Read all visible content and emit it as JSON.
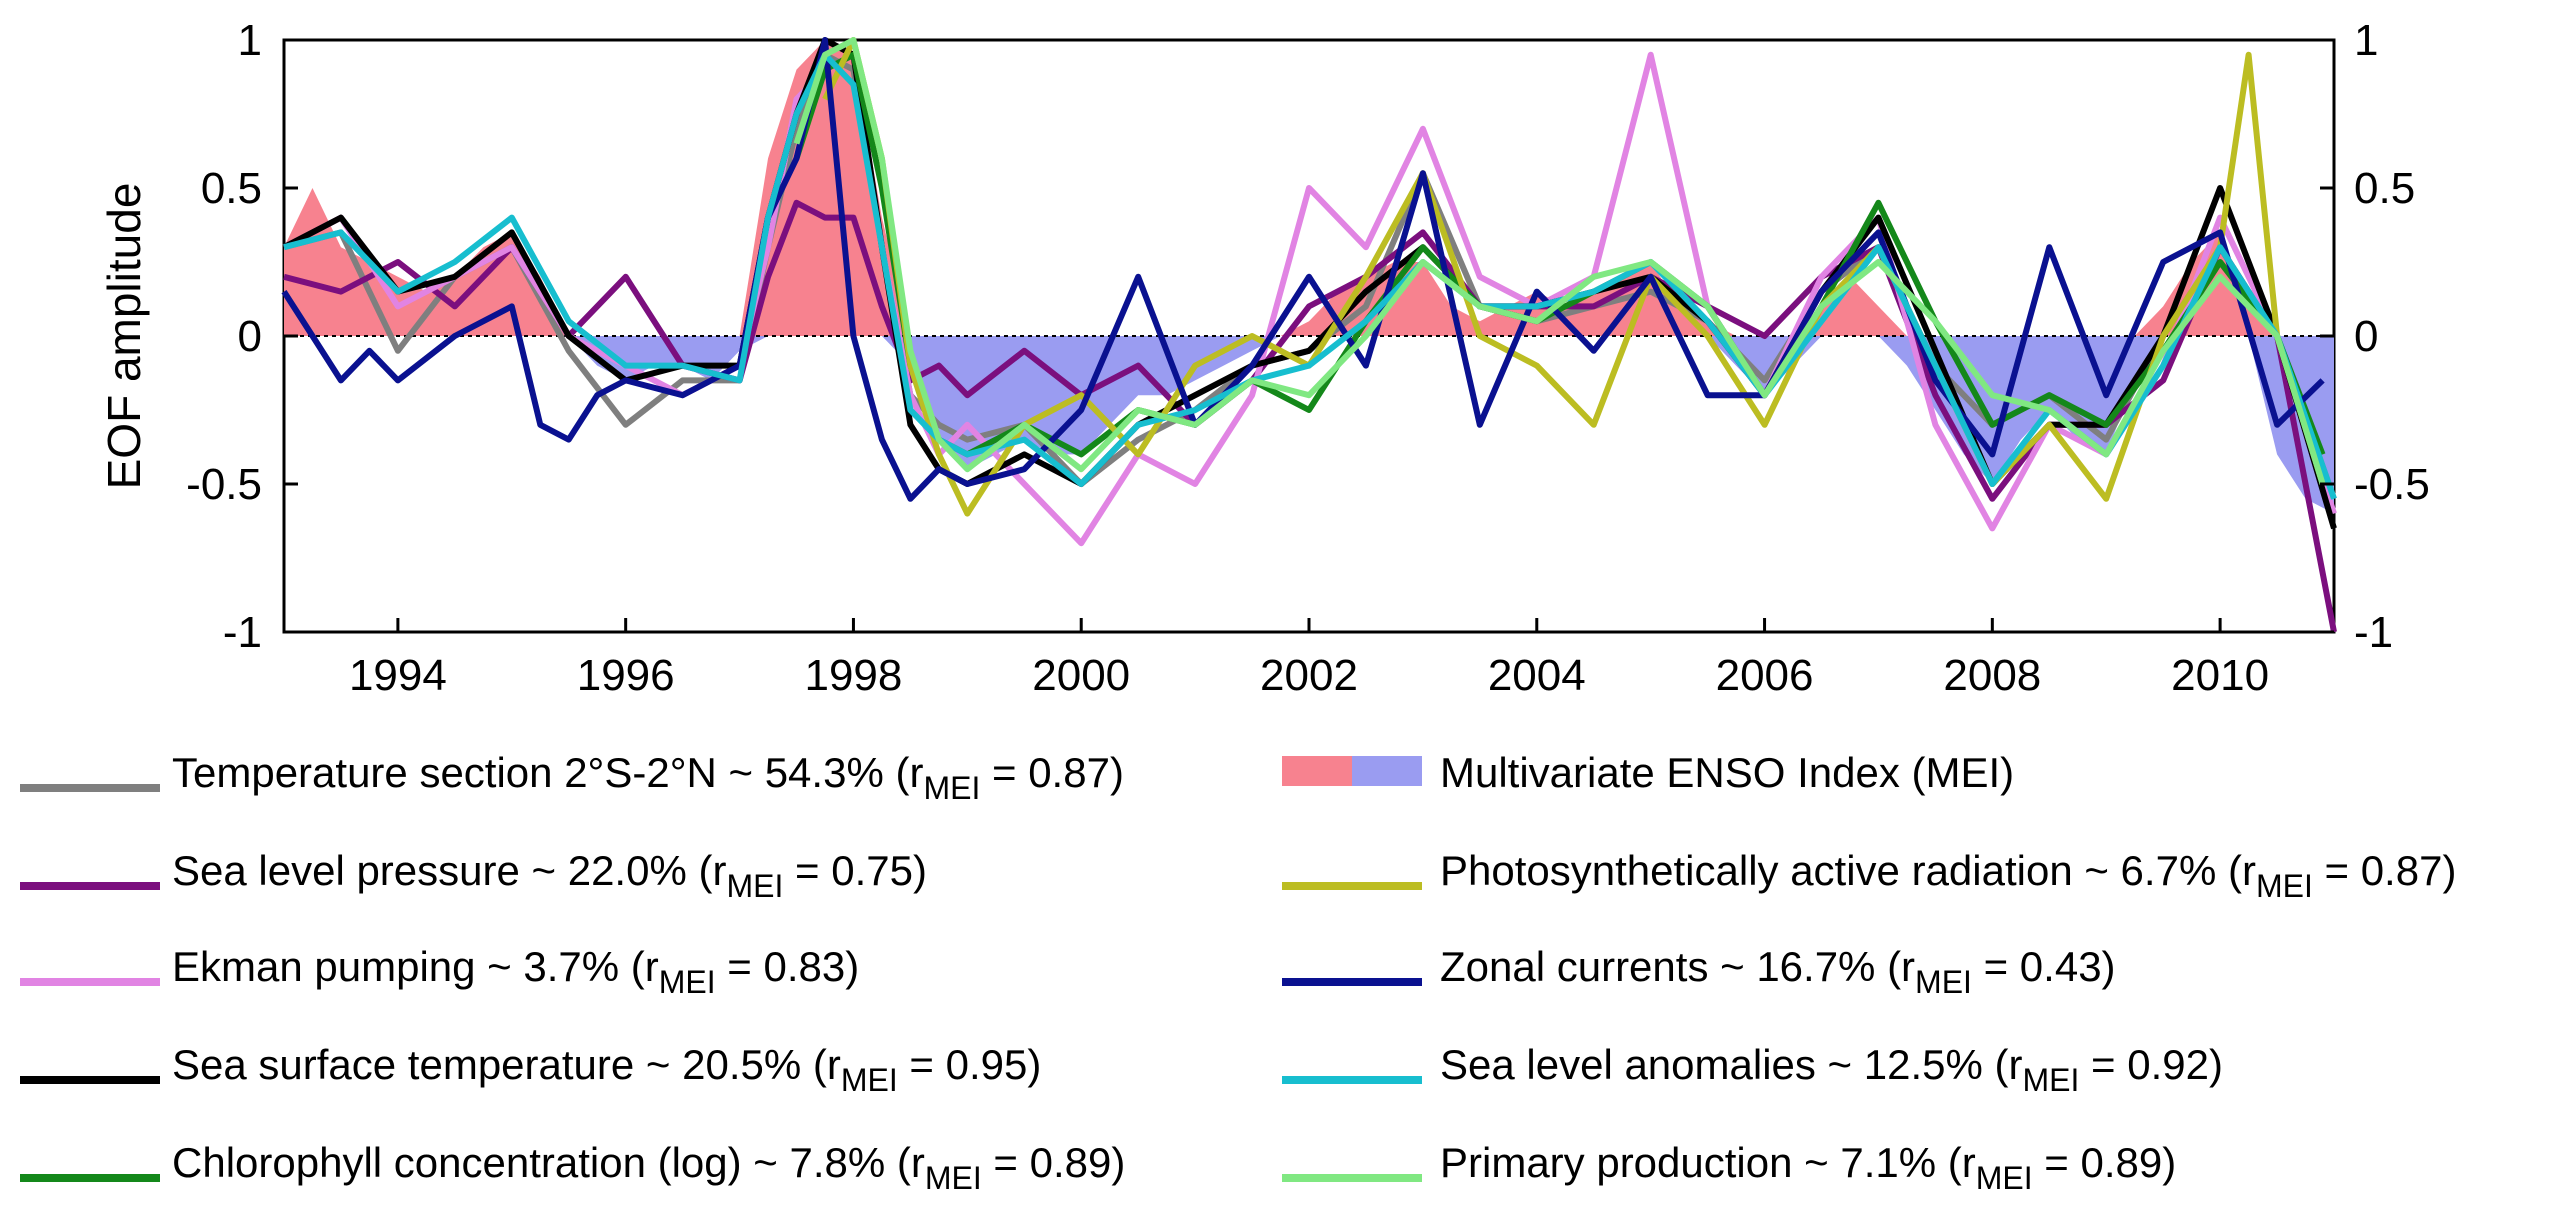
{
  "chart_data": {
    "type": "line",
    "ylabel": "EOF amplitude",
    "xlabel": "",
    "title": "",
    "xlim": [
      1993.0,
      2011.0
    ],
    "ylim": [
      -1,
      1
    ],
    "x_ticks": [
      1994,
      1996,
      1998,
      2000,
      2002,
      2004,
      2006,
      2008,
      2010
    ],
    "y_ticks": [
      -1,
      -0.5,
      0,
      0.5,
      1
    ],
    "y_tick_labels": [
      "-1",
      "-0.5",
      "0",
      "0.5",
      "1"
    ],
    "zero_line": "dotted",
    "grid": false,
    "legend_position": "bottom",
    "mei": {
      "name": "Multivariate ENSO Index (MEI)",
      "positive_color": "#f7828f",
      "negative_color": "#9a9cf1",
      "x": [
        1993.0,
        1993.25,
        1993.5,
        1993.75,
        1994.0,
        1994.25,
        1994.5,
        1994.75,
        1995.0,
        1995.25,
        1995.5,
        1995.75,
        1996.0,
        1996.25,
        1996.5,
        1996.75,
        1997.0,
        1997.25,
        1997.5,
        1997.75,
        1998.0,
        1998.25,
        1998.5,
        1998.75,
        1999.0,
        1999.25,
        1999.5,
        1999.75,
        2000.0,
        2000.25,
        2000.5,
        2000.75,
        2001.0,
        2001.25,
        2001.5,
        2001.75,
        2002.0,
        2002.25,
        2002.5,
        2002.75,
        2003.0,
        2003.25,
        2003.5,
        2003.75,
        2004.0,
        2004.25,
        2004.5,
        2004.75,
        2005.0,
        2005.25,
        2005.5,
        2005.75,
        2006.0,
        2006.25,
        2006.5,
        2006.75,
        2007.0,
        2007.25,
        2007.5,
        2007.75,
        2008.0,
        2008.25,
        2008.5,
        2008.75,
        2009.0,
        2009.25,
        2009.5,
        2009.75,
        2010.0,
        2010.25,
        2010.5,
        2010.75,
        2011.0
      ],
      "values": [
        0.3,
        0.5,
        0.3,
        0.25,
        0.2,
        0.15,
        0.2,
        0.3,
        0.35,
        0.2,
        0.0,
        -0.1,
        -0.15,
        -0.1,
        -0.1,
        -0.15,
        -0.05,
        0.6,
        0.9,
        1.0,
        0.95,
        0.4,
        -0.1,
        -0.35,
        -0.45,
        -0.4,
        -0.35,
        -0.4,
        -0.4,
        -0.3,
        -0.2,
        -0.2,
        -0.15,
        -0.1,
        -0.05,
        0.0,
        0.05,
        0.15,
        0.2,
        0.25,
        0.25,
        0.1,
        0.05,
        0.1,
        0.15,
        0.1,
        0.15,
        0.2,
        0.25,
        0.1,
        0.05,
        -0.1,
        -0.2,
        -0.1,
        0.1,
        0.2,
        0.1,
        -0.1,
        -0.25,
        -0.4,
        -0.5,
        -0.35,
        -0.25,
        -0.35,
        -0.4,
        -0.15,
        0.1,
        0.25,
        0.35,
        0.1,
        -0.4,
        -0.55,
        -0.6
      ]
    },
    "series": [
      {
        "name": "Temperature section 2°S-2°N ~ 54.3%",
        "r_mei": "0.87",
        "color": "#7f7f7f",
        "x": [
          1993.0,
          1993.5,
          1994.0,
          1994.5,
          1995.0,
          1995.5,
          1996.0,
          1996.5,
          1997.0,
          1997.25,
          1997.5,
          1997.75,
          1998.0,
          1998.25,
          1998.5,
          1998.75,
          1999.0,
          1999.5,
          2000.0,
          2000.5,
          2001.0,
          2001.5,
          2002.0,
          2002.5,
          2003.0,
          2003.5,
          2004.0,
          2004.5,
          2005.0,
          2005.5,
          2006.0,
          2006.5,
          2007.0,
          2007.5,
          2008.0,
          2008.5,
          2009.0,
          2009.5,
          2010.0,
          2010.5,
          2011.0
        ],
        "values": [
          0.3,
          0.35,
          -0.05,
          0.2,
          0.3,
          -0.05,
          -0.3,
          -0.15,
          -0.15,
          0.3,
          0.7,
          0.95,
          0.9,
          0.3,
          -0.2,
          -0.3,
          -0.35,
          -0.3,
          -0.5,
          -0.35,
          -0.25,
          -0.1,
          -0.05,
          0.1,
          0.55,
          0.1,
          0.05,
          0.1,
          0.15,
          0.05,
          -0.15,
          0.15,
          0.3,
          -0.1,
          -0.3,
          -0.2,
          -0.35,
          0.0,
          0.3,
          0.0,
          -0.55
        ]
      },
      {
        "name": "Sea level pressure ~ 22.0%",
        "r_mei": "0.75",
        "color": "#7b0f7e",
        "x": [
          1993.0,
          1993.5,
          1994.0,
          1994.5,
          1995.0,
          1995.5,
          1996.0,
          1996.5,
          1997.0,
          1997.25,
          1997.5,
          1997.75,
          1998.0,
          1998.25,
          1998.5,
          1998.75,
          1999.0,
          1999.5,
          2000.0,
          2000.5,
          2001.0,
          2001.5,
          2002.0,
          2002.5,
          2003.0,
          2003.5,
          2004.0,
          2004.5,
          2005.0,
          2005.5,
          2006.0,
          2006.5,
          2007.0,
          2007.5,
          2008.0,
          2008.5,
          2009.0,
          2009.5,
          2010.0,
          2010.5,
          2011.0
        ],
        "values": [
          0.2,
          0.15,
          0.25,
          0.1,
          0.3,
          0.0,
          0.2,
          -0.1,
          -0.15,
          0.2,
          0.45,
          0.4,
          0.4,
          0.1,
          -0.15,
          -0.1,
          -0.2,
          -0.05,
          -0.2,
          -0.1,
          -0.3,
          -0.15,
          0.1,
          0.2,
          0.35,
          0.1,
          0.1,
          0.1,
          0.2,
          0.1,
          0.0,
          0.2,
          0.3,
          -0.2,
          -0.55,
          -0.3,
          -0.3,
          -0.15,
          0.3,
          0.0,
          -1.0
        ]
      },
      {
        "name": "Ekman pumping ~ 3.7%",
        "r_mei": "0.83",
        "color": "#e184e3",
        "x": [
          1993.0,
          1993.5,
          1994.0,
          1994.5,
          1995.0,
          1995.5,
          1996.0,
          1996.5,
          1997.0,
          1997.25,
          1997.5,
          1997.75,
          1998.0,
          1998.25,
          1998.5,
          1998.75,
          1999.0,
          1999.5,
          2000.0,
          2000.5,
          2001.0,
          2001.5,
          2002.0,
          2002.5,
          2003.0,
          2003.5,
          2004.0,
          2004.5,
          2005.0,
          2005.5,
          2006.0,
          2006.5,
          2007.0,
          2007.5,
          2008.0,
          2008.5,
          2009.0,
          2009.5,
          2010.0,
          2010.5,
          2011.0
        ],
        "values": [
          0.3,
          0.4,
          0.1,
          0.2,
          0.3,
          0.0,
          -0.1,
          -0.2,
          -0.1,
          0.3,
          0.8,
          0.9,
          0.95,
          0.3,
          -0.2,
          -0.4,
          -0.3,
          -0.5,
          -0.7,
          -0.4,
          -0.5,
          -0.2,
          0.5,
          0.3,
          0.7,
          0.2,
          0.1,
          0.2,
          0.95,
          0.1,
          -0.2,
          0.2,
          0.4,
          -0.3,
          -0.65,
          -0.3,
          -0.4,
          -0.1,
          0.4,
          0.0,
          -0.6
        ]
      },
      {
        "name": "Sea surface temperature ~ 20.5%",
        "r_mei": "0.95",
        "color": "#000000",
        "x": [
          1993.0,
          1993.5,
          1994.0,
          1994.5,
          1995.0,
          1995.5,
          1996.0,
          1996.5,
          1997.0,
          1997.25,
          1997.5,
          1997.75,
          1998.0,
          1998.25,
          1998.5,
          1998.75,
          1999.0,
          1999.5,
          2000.0,
          2000.5,
          2001.0,
          2001.5,
          2002.0,
          2002.5,
          2003.0,
          2003.5,
          2004.0,
          2004.5,
          2005.0,
          2005.5,
          2006.0,
          2006.5,
          2007.0,
          2007.5,
          2008.0,
          2008.5,
          2009.0,
          2009.5,
          2010.0,
          2010.5,
          2011.0
        ],
        "values": [
          0.3,
          0.4,
          0.15,
          0.2,
          0.35,
          0.0,
          -0.15,
          -0.1,
          -0.1,
          0.4,
          0.75,
          1.0,
          0.95,
          0.3,
          -0.3,
          -0.45,
          -0.5,
          -0.4,
          -0.5,
          -0.3,
          -0.2,
          -0.1,
          -0.05,
          0.15,
          0.3,
          0.1,
          0.1,
          0.15,
          0.2,
          0.05,
          -0.2,
          0.15,
          0.4,
          -0.05,
          -0.5,
          -0.3,
          -0.3,
          0.0,
          0.5,
          0.0,
          -0.65
        ]
      },
      {
        "name": "Chlorophyll concentration (log) ~ 7.8%",
        "r_mei": "0.89",
        "color": "#14881a",
        "x": [
          1997.5,
          1997.75,
          1998.0,
          1998.25,
          1998.5,
          1998.75,
          1999.0,
          1999.5,
          2000.0,
          2000.5,
          2001.0,
          2001.5,
          2002.0,
          2002.5,
          2003.0,
          2003.5,
          2004.0,
          2004.5,
          2005.0,
          2005.5,
          2006.0,
          2006.5,
          2007.0,
          2007.5,
          2008.0,
          2008.5,
          2009.0,
          2009.5,
          2010.0,
          2010.5,
          2010.9
        ],
        "values": [
          0.6,
          0.9,
          0.95,
          0.5,
          -0.1,
          -0.35,
          -0.4,
          -0.3,
          -0.4,
          -0.25,
          -0.3,
          -0.15,
          -0.25,
          0.05,
          0.3,
          0.1,
          0.05,
          0.15,
          0.25,
          0.1,
          -0.2,
          0.1,
          0.45,
          0.05,
          -0.3,
          -0.2,
          -0.3,
          -0.05,
          0.25,
          0.0,
          -0.4
        ]
      },
      {
        "name": "Photosynthetically active radiation ~ 6.7%",
        "r_mei": "0.87",
        "color": "#bcbd22",
        "x": [
          1997.75,
          1998.0,
          1998.25,
          1998.5,
          1998.75,
          1999.0,
          1999.5,
          2000.0,
          2000.5,
          2001.0,
          2001.5,
          2002.0,
          2002.5,
          2003.0,
          2003.5,
          2004.0,
          2004.5,
          2005.0,
          2005.5,
          2006.0,
          2006.5,
          2007.0,
          2007.5,
          2008.0,
          2008.5,
          2009.0,
          2009.5,
          2010.0,
          2010.25,
          2010.5,
          2010.9
        ],
        "values": [
          0.8,
          1.0,
          0.6,
          -0.1,
          -0.4,
          -0.6,
          -0.3,
          -0.2,
          -0.4,
          -0.1,
          0.0,
          -0.1,
          0.2,
          0.55,
          0.0,
          -0.1,
          -0.3,
          0.2,
          0.0,
          -0.3,
          0.1,
          0.3,
          -0.1,
          -0.5,
          -0.3,
          -0.55,
          0.0,
          0.3,
          0.95,
          0.0,
          -0.5
        ]
      },
      {
        "name": "Zonal currents ~ 16.7%",
        "r_mei": "0.43",
        "color": "#0a1190",
        "x": [
          1993.0,
          1993.25,
          1993.5,
          1993.75,
          1994.0,
          1994.5,
          1995.0,
          1995.25,
          1995.5,
          1995.75,
          1996.0,
          1996.5,
          1997.0,
          1997.25,
          1997.5,
          1997.75,
          1998.0,
          1998.25,
          1998.5,
          1998.75,
          1999.0,
          1999.5,
          2000.0,
          2000.5,
          2001.0,
          2001.5,
          2002.0,
          2002.5,
          2003.0,
          2003.5,
          2004.0,
          2004.5,
          2005.0,
          2005.5,
          2006.0,
          2006.5,
          2007.0,
          2007.5,
          2008.0,
          2008.5,
          2009.0,
          2009.5,
          2010.0,
          2010.5,
          2010.9
        ],
        "values": [
          0.15,
          0.0,
          -0.15,
          -0.05,
          -0.15,
          0.0,
          0.1,
          -0.3,
          -0.35,
          -0.2,
          -0.15,
          -0.2,
          -0.1,
          0.4,
          0.6,
          1.0,
          0.0,
          -0.35,
          -0.55,
          -0.45,
          -0.5,
          -0.45,
          -0.25,
          0.2,
          -0.3,
          -0.1,
          0.2,
          -0.1,
          0.55,
          -0.3,
          0.15,
          -0.05,
          0.2,
          -0.2,
          -0.2,
          0.15,
          0.35,
          -0.15,
          -0.4,
          0.3,
          -0.2,
          0.25,
          0.35,
          -0.3,
          -0.15
        ]
      },
      {
        "name": "Sea level anomalies ~ 12.5%",
        "r_mei": "0.92",
        "color": "#17becf",
        "x": [
          1993.0,
          1993.5,
          1994.0,
          1994.5,
          1995.0,
          1995.5,
          1996.0,
          1996.5,
          1997.0,
          1997.25,
          1997.5,
          1997.75,
          1998.0,
          1998.25,
          1998.5,
          1998.75,
          1999.0,
          1999.5,
          2000.0,
          2000.5,
          2001.0,
          2001.5,
          2002.0,
          2002.5,
          2003.0,
          2003.5,
          2004.0,
          2004.5,
          2005.0,
          2005.5,
          2006.0,
          2006.5,
          2007.0,
          2007.5,
          2008.0,
          2008.5,
          2009.0,
          2009.5,
          2010.0,
          2010.5,
          2011.0
        ],
        "values": [
          0.3,
          0.35,
          0.15,
          0.25,
          0.4,
          0.05,
          -0.1,
          -0.1,
          -0.15,
          0.4,
          0.75,
          0.95,
          0.85,
          0.3,
          -0.25,
          -0.35,
          -0.4,
          -0.35,
          -0.5,
          -0.3,
          -0.25,
          -0.15,
          -0.1,
          0.05,
          0.25,
          0.1,
          0.1,
          0.15,
          0.25,
          0.05,
          -0.2,
          0.05,
          0.3,
          -0.1,
          -0.5,
          -0.25,
          -0.4,
          -0.1,
          0.3,
          0.0,
          -0.55
        ]
      },
      {
        "name": "Primary production ~ 7.1%",
        "r_mei": "0.89",
        "color": "#80e882",
        "x": [
          1997.5,
          1997.75,
          1998.0,
          1998.25,
          1998.5,
          1998.75,
          1999.0,
          1999.5,
          2000.0,
          2000.5,
          2001.0,
          2001.5,
          2002.0,
          2002.5,
          2003.0,
          2003.5,
          2004.0,
          2004.5,
          2005.0,
          2005.5,
          2006.0,
          2006.5,
          2007.0,
          2007.5,
          2008.0,
          2008.5,
          2009.0,
          2009.5,
          2010.0,
          2010.5,
          2010.9
        ],
        "values": [
          0.65,
          0.95,
          1.0,
          0.6,
          -0.05,
          -0.35,
          -0.45,
          -0.3,
          -0.45,
          -0.25,
          -0.3,
          -0.15,
          -0.2,
          0.0,
          0.25,
          0.1,
          0.05,
          0.2,
          0.25,
          0.1,
          -0.2,
          0.1,
          0.25,
          0.05,
          -0.2,
          -0.25,
          -0.4,
          -0.05,
          0.2,
          0.0,
          -0.5
        ]
      }
    ]
  },
  "legend": {
    "mei_label": "Multivariate ENSO Index (MEI)",
    "r_prefix": "(r",
    "r_subscript": "MEI",
    "r_infix": " = ",
    "r_suffix": ")"
  }
}
